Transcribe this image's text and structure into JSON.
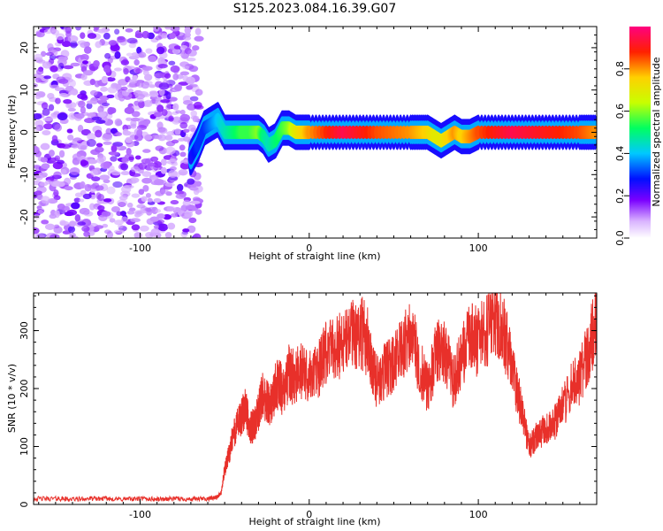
{
  "title": "S125.2023.084.16.39.G07",
  "chart_data": [
    {
      "type": "heatmap",
      "xlabel": "Height of straight line (km)",
      "ylabel": "Frequency (Hz)",
      "xlim": [
        -163,
        170
      ],
      "ylim": [
        -25,
        25
      ],
      "xticks": [
        -100,
        0,
        100
      ],
      "xtick_labels": [
        "-100",
        "0",
        "100"
      ],
      "yticks": [
        -20,
        -10,
        0,
        10,
        20
      ],
      "ytick_labels": [
        "-20",
        "-10",
        "0",
        "10",
        "20"
      ],
      "noise_region_x": [
        -163,
        -65
      ],
      "ridge": {
        "x": [
          -70,
          -66,
          -62,
          -58,
          -54,
          -50,
          -45,
          -40,
          -35,
          -30,
          -27,
          -24,
          -20,
          -16,
          -12,
          -8,
          -4,
          0,
          20,
          40,
          60,
          70,
          74,
          78,
          82,
          86,
          90,
          95,
          100,
          120,
          140,
          160,
          170
        ],
        "freq": [
          -6,
          -3,
          1,
          2,
          3,
          0,
          0,
          0,
          0,
          0,
          -1,
          -3,
          -2,
          1,
          1,
          0,
          0,
          0,
          0,
          0,
          0,
          0,
          -1,
          -2,
          -1,
          0,
          -1,
          -1,
          0,
          0,
          0,
          0,
          0
        ],
        "amplitude": [
          0.25,
          0.3,
          0.3,
          0.35,
          0.4,
          0.45,
          0.5,
          0.55,
          0.55,
          0.6,
          0.5,
          0.45,
          0.5,
          0.55,
          0.6,
          0.7,
          0.75,
          0.8,
          0.95,
          0.85,
          0.8,
          0.75,
          0.7,
          0.7,
          0.75,
          0.8,
          0.75,
          0.8,
          0.85,
          0.95,
          0.9,
          0.85,
          0.8
        ]
      },
      "colorbar": {
        "label": "Normalized spectral amplitude",
        "range": [
          0,
          1
        ],
        "ticks": [
          0.0,
          0.2,
          0.4,
          0.6,
          0.8
        ],
        "tick_labels": [
          "0.0",
          "0.2",
          "0.4",
          "0.6",
          "0.8"
        ]
      }
    },
    {
      "type": "line",
      "xlabel": "Height of straight line (km)",
      "ylabel": "SNR (10 * v/v)",
      "xlim": [
        -163,
        170
      ],
      "ylim": [
        0,
        365
      ],
      "xticks": [
        -100,
        0,
        100
      ],
      "xtick_labels": [
        "-100",
        "0",
        "100"
      ],
      "yticks": [
        0,
        100,
        200,
        300
      ],
      "ytick_labels": [
        "0",
        "100",
        "200",
        "300"
      ],
      "series": [
        {
          "color": "#e8302a",
          "x": [
            -163,
            -150,
            -140,
            -130,
            -120,
            -110,
            -100,
            -90,
            -80,
            -70,
            -60,
            -55,
            -52,
            -50,
            -47,
            -45,
            -42,
            -40,
            -38,
            -35,
            -32,
            -30,
            -28,
            -25,
            -22,
            -20,
            -18,
            -15,
            -12,
            -10,
            -5,
            0,
            5,
            10,
            15,
            20,
            25,
            30,
            35,
            40,
            45,
            50,
            55,
            60,
            65,
            70,
            75,
            80,
            85,
            90,
            95,
            100,
            105,
            110,
            115,
            120,
            125,
            130,
            135,
            140,
            145,
            150,
            155,
            160,
            165,
            170
          ],
          "y": [
            10,
            10,
            9,
            10,
            10,
            9,
            10,
            9,
            10,
            9,
            10,
            12,
            20,
            60,
            90,
            120,
            140,
            150,
            170,
            130,
            140,
            160,
            190,
            180,
            170,
            200,
            210,
            190,
            230,
            220,
            230,
            220,
            230,
            260,
            270,
            280,
            290,
            300,
            280,
            210,
            230,
            240,
            270,
            300,
            240,
            200,
            260,
            270,
            210,
            250,
            290,
            280,
            300,
            330,
            300,
            230,
            170,
            100,
            120,
            130,
            140,
            170,
            200,
            220,
            260,
            330
          ]
        }
      ]
    }
  ]
}
